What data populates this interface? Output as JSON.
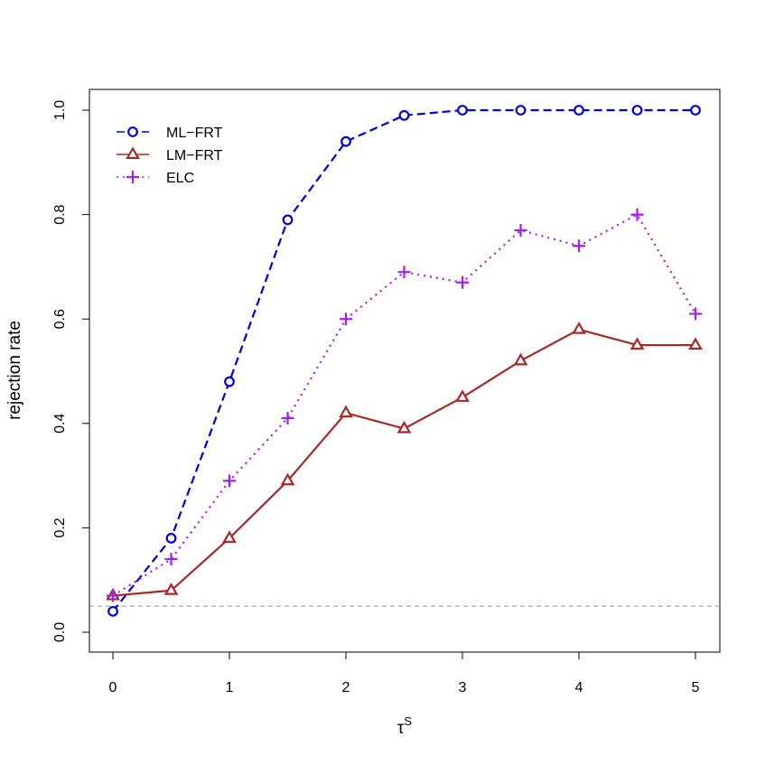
{
  "chart_data": {
    "type": "line",
    "title": "",
    "xlabel": "τ",
    "xlabel_superscript": "S",
    "ylabel": "rejection rate",
    "x": [
      0,
      0.5,
      1,
      1.5,
      2,
      2.5,
      3,
      3.5,
      4,
      4.5,
      5
    ],
    "xlim": [
      0,
      5
    ],
    "ylim": [
      0,
      1.0
    ],
    "x_ticks": [
      0,
      1,
      2,
      3,
      4,
      5
    ],
    "x_tick_labels": [
      "0",
      "1",
      "2",
      "3",
      "4",
      "5"
    ],
    "y_ticks": [
      0,
      0.2,
      0.4,
      0.6,
      0.8,
      1.0
    ],
    "y_tick_labels": [
      "0.0",
      "0.2",
      "0.4",
      "0.6",
      "0.8",
      "1.0"
    ],
    "grid": false,
    "legend_position": "top-left",
    "reference_line": {
      "y": 0.05,
      "color": "#aaaaaa",
      "style": "dashed"
    },
    "series": [
      {
        "name": "ML−FRT",
        "values": [
          0.04,
          0.18,
          0.48,
          0.79,
          0.94,
          0.99,
          1.0,
          1.0,
          1.0,
          1.0,
          1.0
        ],
        "color": "#0000dd",
        "line_style": "dashed",
        "marker": "circle"
      },
      {
        "name": "LM−FRT",
        "values": [
          0.07,
          0.08,
          0.18,
          0.29,
          0.42,
          0.39,
          0.45,
          0.52,
          0.58,
          0.55,
          0.55
        ],
        "color": "#a52a2a",
        "line_style": "solid",
        "marker": "triangle"
      },
      {
        "name": "ELC",
        "values": [
          0.07,
          0.14,
          0.29,
          0.41,
          0.6,
          0.69,
          0.67,
          0.77,
          0.74,
          0.8,
          0.61
        ],
        "color": "#a020f0",
        "line_style": "dotted",
        "marker": "plus"
      }
    ]
  }
}
